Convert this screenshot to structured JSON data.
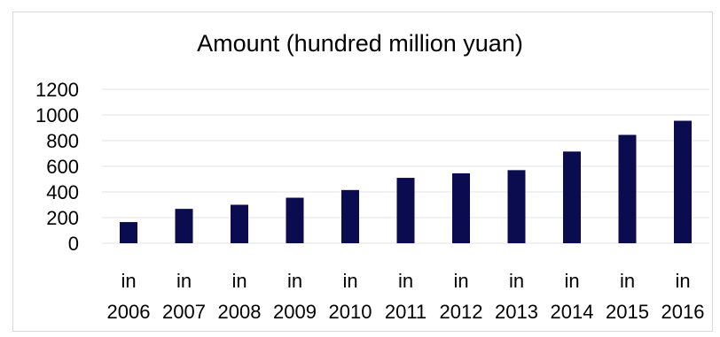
{
  "chart_data": {
    "type": "bar",
    "title": "Amount (hundred million yuan)",
    "xlabel": "",
    "ylabel": "",
    "categories": [
      "in 2006",
      "in 2007",
      "in 2008",
      "in 2009",
      "in 2010",
      "in 2011",
      "in 2012",
      "in 2013",
      "in 2014",
      "in 2015",
      "in 2016"
    ],
    "values": [
      165,
      268,
      300,
      355,
      415,
      510,
      545,
      570,
      715,
      845,
      955
    ],
    "ylim": [
      0,
      1200
    ],
    "yticks": [
      "0",
      "200",
      "400",
      "600",
      "800",
      "1000",
      "1200"
    ],
    "grid": true,
    "legend": "none",
    "bar_color": "#0b0b4f",
    "grid_color": "#e3e3e3"
  }
}
